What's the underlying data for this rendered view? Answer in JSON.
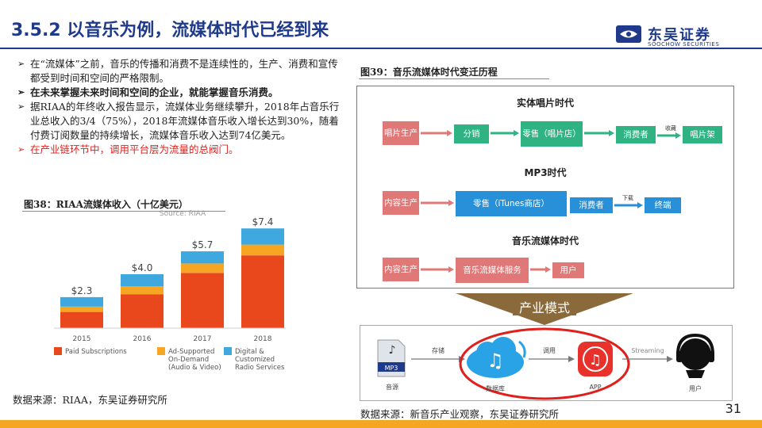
{
  "header": {
    "title": "3.5.2 以音乐为例，流媒体时代已经到来",
    "logo_cn": "东吴证券",
    "logo_en": "SOOCHOW SECURITIES"
  },
  "bullets": [
    {
      "text": "在“流媒体”之前，音乐的传播和消费不是连续性的，生产、消费和宣传都受到时间和空间的严格限制。",
      "style": "normal"
    },
    {
      "text": "在未来掌握未来时间和空间的企业，就能掌握音乐消费。",
      "style": "bold"
    },
    {
      "text": "据RIAA的年终收入报告显示，流媒体业务继续攀升，2018年占音乐行业总收入的3/4（75%），2018年流媒体音乐收入增长达到30%，随着付费订阅数量的持续增长，流媒体音乐收入达到74亿美元。",
      "style": "normal"
    },
    {
      "text": "在产业链环节中，调用平台层为流量的总阀门。",
      "style": "red"
    }
  ],
  "fig38": {
    "caption": "图38：RIAA流媒体收入（十亿美元）",
    "source_note": "Source: RIAA",
    "source": "数据来源：RIAA，东吴证券研究所"
  },
  "chart_data": {
    "type": "bar",
    "stacked": true,
    "categories": [
      "2015",
      "2016",
      "2017",
      "2018"
    ],
    "totals": [
      2.3,
      4.0,
      5.7,
      7.4
    ],
    "total_labels": [
      "$2.3",
      "$4.0",
      "$5.7",
      "$7.4"
    ],
    "series": [
      {
        "name": "Paid Subscriptions",
        "color": "#e8481c",
        "values": [
          1.2,
          2.5,
          4.1,
          5.4
        ]
      },
      {
        "name": "Ad-Supported On-Demand (Audio & Video)",
        "color": "#f6a623",
        "values": [
          0.4,
          0.6,
          0.7,
          0.8
        ]
      },
      {
        "name": "Digital & Customized Radio Services",
        "color": "#3ea8df",
        "values": [
          0.7,
          0.9,
          0.9,
          1.2
        ]
      }
    ],
    "legend": [
      {
        "label_lines": [
          "Paid Subscriptions"
        ],
        "color": "#e8481c"
      },
      {
        "label_lines": [
          "Ad-Supported",
          "On-Demand",
          "(Audio & Video)"
        ],
        "color": "#f6a623"
      },
      {
        "label_lines": [
          "Digital &",
          "Customized",
          "Radio Services"
        ],
        "color": "#3ea8df"
      }
    ],
    "ylim": [
      0,
      8
    ],
    "legend_position": "bottom"
  },
  "fig39": {
    "caption": "图39：音乐流媒体时代变迁历程",
    "source": "数据来源：新音乐产业观察，东吴证券研究所",
    "eras": [
      {
        "title": "实体唱片时代",
        "boxes": [
          "唱片生产",
          "分销",
          "零售（唱片店）",
          "消费者",
          "唱片架"
        ],
        "labels": [
          "收藏"
        ]
      },
      {
        "title": "MP3时代",
        "boxes": [
          "内容生产",
          "零售（iTunes商店）",
          "消费者",
          "终端"
        ],
        "labels": [
          "下载"
        ]
      },
      {
        "title": "音乐流媒体时代",
        "boxes": [
          "内容生产",
          "音乐流媒体服务",
          "用户"
        ],
        "labels": []
      }
    ],
    "mode_label": "产业模式",
    "ecosystem": {
      "nodes": [
        "音源",
        "数据库",
        "APP",
        "用户"
      ],
      "edges": [
        "存储",
        "调用",
        "Streaming"
      ],
      "mp3_text": "MP3"
    }
  },
  "footer": {
    "page_number": "31"
  }
}
